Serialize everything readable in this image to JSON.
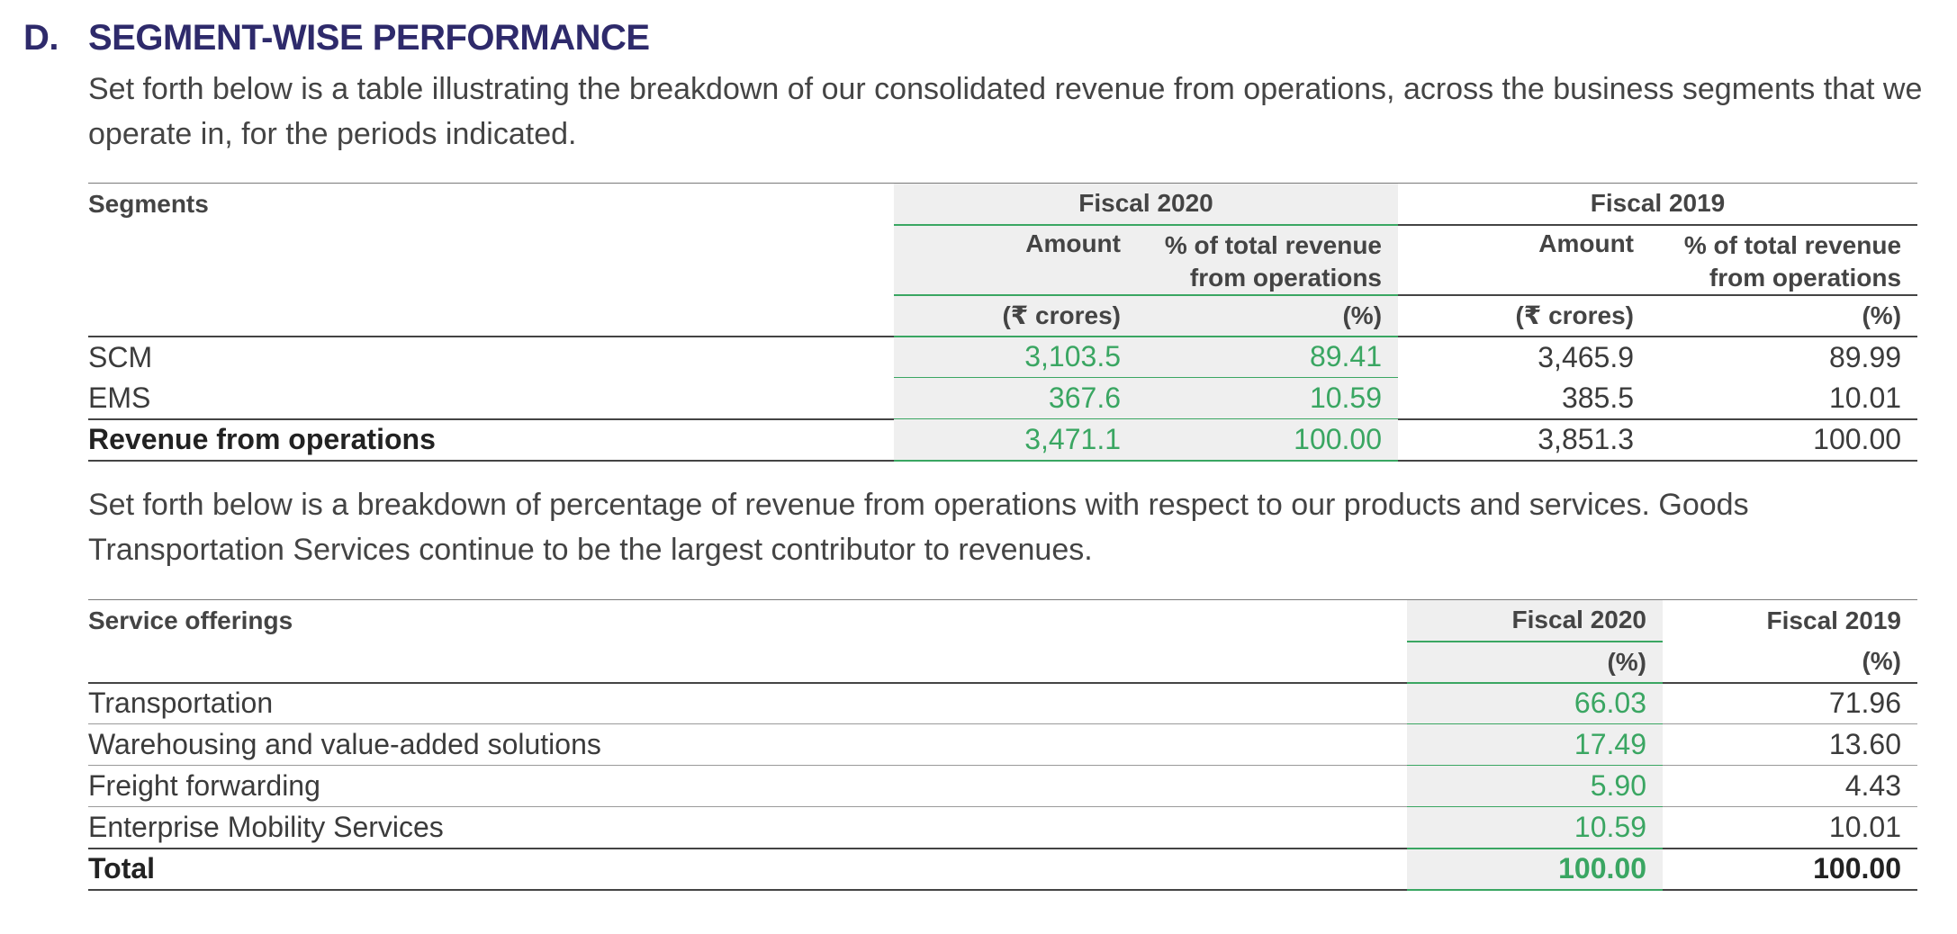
{
  "section": {
    "letter": "D.",
    "title": "SEGMENT-WISE PERFORMANCE",
    "intro": "Set forth below is a table illustrating the breakdown of our consolidated revenue from operations, across the business segments that we operate in, for the periods indicated."
  },
  "table1": {
    "col_label": "Segments",
    "fy2020": "Fiscal 2020",
    "fy2019": "Fiscal 2019",
    "amount": "Amount",
    "pct_line1": "% of total revenue",
    "pct_line2": "from operations",
    "unit_amount": "(₹ crores)",
    "unit_pct": "(%)",
    "rows": [
      {
        "name": "SCM",
        "a2020": "3,103.5",
        "p2020": "89.41",
        "a2019": "3,465.9",
        "p2019": "89.99"
      },
      {
        "name": "EMS",
        "a2020": "367.6",
        "p2020": "10.59",
        "a2019": "385.5",
        "p2019": "10.01"
      },
      {
        "name": "Revenue from operations",
        "a2020": "3,471.1",
        "p2020": "100.00",
        "a2019": "3,851.3",
        "p2019": "100.00"
      }
    ]
  },
  "para2": "Set forth below is a breakdown of percentage of revenue from operations with respect to our products and services. Goods Transportation Services continue to be the largest contributor to revenues.",
  "table2": {
    "col_label": "Service offerings",
    "fy2020": "Fiscal 2020",
    "fy2019": "Fiscal 2019",
    "unit": "(%)",
    "rows": [
      {
        "name": "Transportation",
        "p2020": "66.03",
        "p2019": "71.96"
      },
      {
        "name": "Warehousing and value-added solutions",
        "p2020": "17.49",
        "p2019": "13.60"
      },
      {
        "name": "Freight forwarding",
        "p2020": "5.90",
        "p2019": "4.43"
      },
      {
        "name": "Enterprise Mobility Services",
        "p2020": "10.59",
        "p2019": "10.01"
      },
      {
        "name": "Total",
        "p2020": "100.00",
        "p2019": "100.00"
      }
    ]
  },
  "colors": {
    "green": "#3aa662",
    "navy": "#2e2a6b",
    "shade": "#efefef"
  }
}
